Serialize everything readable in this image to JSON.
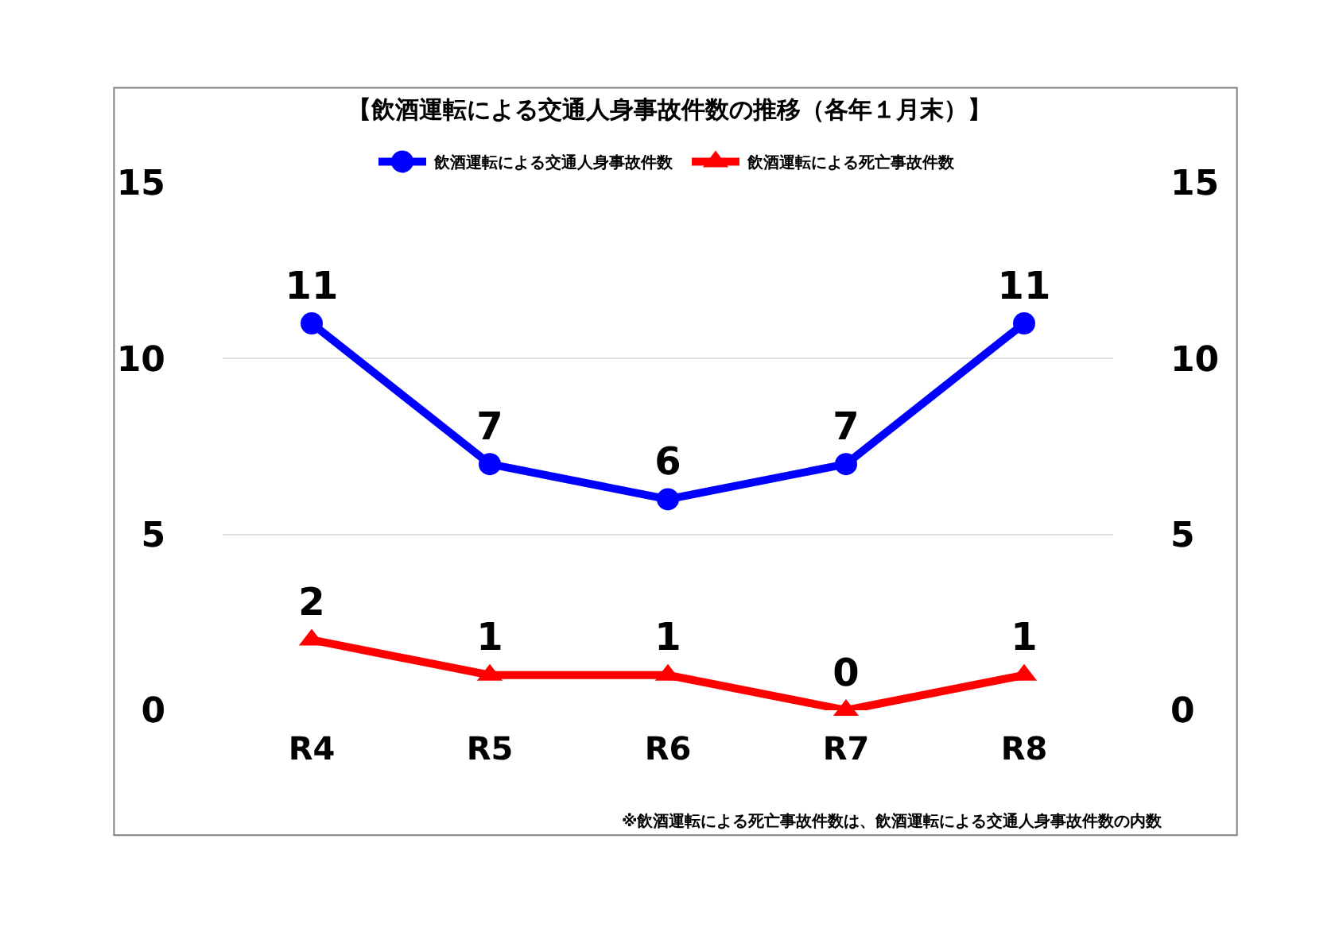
{
  "chart_data": {
    "type": "line",
    "title": "【飲酒運転による交通人身事故件数の推移（各年１月末）】",
    "categories": [
      "R4",
      "R5",
      "R6",
      "R7",
      "R8"
    ],
    "series": [
      {
        "name": "飲酒運転による交通人身事故件数",
        "color": "#0000ff",
        "values": [
          11,
          7,
          6,
          7,
          11
        ],
        "marker": "circle"
      },
      {
        "name": "飲酒運転による死亡事故件数",
        "color": "#ff0000",
        "values": [
          2,
          1,
          1,
          0,
          1
        ],
        "marker": "triangle",
        "axis": "y2"
      }
    ],
    "ylim": [
      0,
      15
    ],
    "yticks": [
      0,
      5,
      10,
      15
    ],
    "y2lim": [
      0,
      15
    ],
    "y2ticks": [
      0,
      5,
      10,
      15
    ],
    "grid": "y",
    "legend": "top",
    "data_labels": true,
    "line_style": "solid",
    "annotations": [
      "※飲酒運転による死亡事故件数は、飲酒運転による交通人身事故件数の内数"
    ]
  }
}
